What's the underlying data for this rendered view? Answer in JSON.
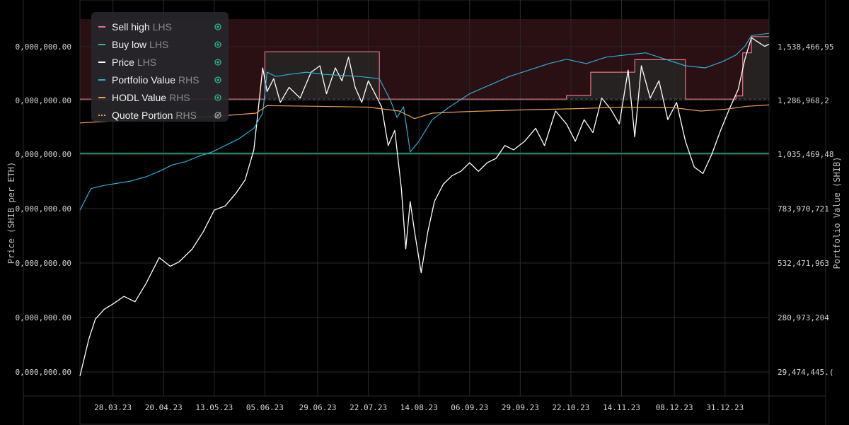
{
  "chart_data": {
    "type": "line",
    "left_axis_label": "Price (SHIB per ETH)",
    "right_axis_label": "Portfolio Value (SHIB)",
    "left_ticks": [
      "0,000,000.00",
      "0,000,000.00",
      "0,000,000.00",
      "0,000,000.00",
      "0,000,000.00",
      "0,000,000.00",
      "0,000,000.00"
    ],
    "right_ticks": [
      "1,538,466,95",
      "1,286,968,2",
      "1,035,469,48",
      "783,970,721",
      "532,471,963",
      "280,973,204",
      "29,474,445.("
    ],
    "right_tick_values": [
      1538466950,
      1286968200,
      1035469480,
      783970721,
      532471963,
      280973204,
      29474445
    ],
    "x_tick_labels": [
      "28.03.23",
      "20.04.23",
      "13.05.23",
      "05.06.23",
      "29.06.23",
      "22.07.23",
      "14.08.23",
      "06.09.23",
      "29.09.23",
      "22.10.23",
      "14.11.23",
      "08.12.23",
      "31.12.23"
    ],
    "x_tick_dates": [
      "2023-03-28",
      "2023-04-20",
      "2023-05-13",
      "2023-06-05",
      "2023-06-29",
      "2023-07-22",
      "2023-08-14",
      "2023-09-06",
      "2023-09-29",
      "2023-10-22",
      "2023-11-14",
      "2023-12-08",
      "2023-12-31"
    ],
    "x_range": [
      "2023-03-13",
      "2024-01-20"
    ],
    "grid": true,
    "legend_position": "top-left",
    "series": [
      {
        "name": "Sell high",
        "axis": "LHS",
        "color": "#e8737f",
        "visible": true,
        "style": "step",
        "points": [
          [
            "2023-03-13",
            1295000000
          ],
          [
            "2023-06-05",
            1295000000
          ],
          [
            "2023-06-05",
            1515000000
          ],
          [
            "2023-07-27",
            1515000000
          ],
          [
            "2023-07-27",
            1295000000
          ],
          [
            "2023-10-20",
            1295000000
          ],
          [
            "2023-10-20",
            1312000000
          ],
          [
            "2023-10-31",
            1312000000
          ],
          [
            "2023-10-31",
            1420000000
          ],
          [
            "2023-11-20",
            1420000000
          ],
          [
            "2023-11-20",
            1478000000
          ],
          [
            "2023-12-13",
            1478000000
          ],
          [
            "2023-12-13",
            1295000000
          ],
          [
            "2023-12-30",
            1295000000
          ],
          [
            "2024-01-05",
            1295000000
          ],
          [
            "2024-01-05",
            1310000000
          ],
          [
            "2024-01-08",
            1310000000
          ],
          [
            "2024-01-08",
            1510000000
          ],
          [
            "2024-01-12",
            1510000000
          ],
          [
            "2024-01-12",
            1585000000
          ],
          [
            "2024-01-20",
            1585000000
          ]
        ]
      },
      {
        "name": "Buy low",
        "axis": "LHS",
        "color": "#2fb884",
        "visible": true,
        "style": "line",
        "points": [
          [
            "2023-03-13",
            1042000000
          ],
          [
            "2024-01-20",
            1042000000
          ]
        ]
      },
      {
        "name": "Price",
        "axis": "LHS",
        "color": "#ffffff",
        "visible": true,
        "style": "line",
        "points": [
          [
            "2023-03-13",
            10000000
          ],
          [
            "2023-03-17",
            180000000
          ],
          [
            "2023-03-20",
            275000000
          ],
          [
            "2023-03-24",
            320000000
          ],
          [
            "2023-03-28",
            345000000
          ],
          [
            "2023-04-02",
            380000000
          ],
          [
            "2023-04-07",
            355000000
          ],
          [
            "2023-04-12",
            440000000
          ],
          [
            "2023-04-18",
            560000000
          ],
          [
            "2023-04-23",
            520000000
          ],
          [
            "2023-04-27",
            540000000
          ],
          [
            "2023-05-03",
            600000000
          ],
          [
            "2023-05-08",
            680000000
          ],
          [
            "2023-05-13",
            780000000
          ],
          [
            "2023-05-18",
            800000000
          ],
          [
            "2023-05-23",
            860000000
          ],
          [
            "2023-05-27",
            920000000
          ],
          [
            "2023-05-31",
            1060000000
          ],
          [
            "2023-06-02",
            1250000000
          ],
          [
            "2023-06-04",
            1440000000
          ],
          [
            "2023-06-06",
            1330000000
          ],
          [
            "2023-06-09",
            1390000000
          ],
          [
            "2023-06-12",
            1280000000
          ],
          [
            "2023-06-16",
            1350000000
          ],
          [
            "2023-06-21",
            1300000000
          ],
          [
            "2023-06-26",
            1420000000
          ],
          [
            "2023-06-30",
            1450000000
          ],
          [
            "2023-07-03",
            1320000000
          ],
          [
            "2023-07-07",
            1440000000
          ],
          [
            "2023-07-10",
            1380000000
          ],
          [
            "2023-07-13",
            1490000000
          ],
          [
            "2023-07-16",
            1350000000
          ],
          [
            "2023-07-19",
            1280000000
          ],
          [
            "2023-07-22",
            1380000000
          ],
          [
            "2023-07-25",
            1320000000
          ],
          [
            "2023-07-28",
            1260000000
          ],
          [
            "2023-07-31",
            1080000000
          ],
          [
            "2023-08-03",
            1150000000
          ],
          [
            "2023-08-06",
            880000000
          ],
          [
            "2023-08-08",
            600000000
          ],
          [
            "2023-08-10",
            820000000
          ],
          [
            "2023-08-12",
            680000000
          ],
          [
            "2023-08-15",
            490000000
          ],
          [
            "2023-08-18",
            680000000
          ],
          [
            "2023-08-21",
            820000000
          ],
          [
            "2023-08-25",
            900000000
          ],
          [
            "2023-08-29",
            940000000
          ],
          [
            "2023-09-02",
            960000000
          ],
          [
            "2023-09-06",
            1000000000
          ],
          [
            "2023-09-10",
            960000000
          ],
          [
            "2023-09-14",
            1000000000
          ],
          [
            "2023-09-18",
            1020000000
          ],
          [
            "2023-09-22",
            1080000000
          ],
          [
            "2023-09-26",
            1060000000
          ],
          [
            "2023-10-01",
            1100000000
          ],
          [
            "2023-10-06",
            1160000000
          ],
          [
            "2023-10-10",
            1080000000
          ],
          [
            "2023-10-15",
            1240000000
          ],
          [
            "2023-10-20",
            1180000000
          ],
          [
            "2023-10-24",
            1100000000
          ],
          [
            "2023-10-28",
            1200000000
          ],
          [
            "2023-11-01",
            1140000000
          ],
          [
            "2023-11-05",
            1300000000
          ],
          [
            "2023-11-09",
            1250000000
          ],
          [
            "2023-11-13",
            1180000000
          ],
          [
            "2023-11-17",
            1430000000
          ],
          [
            "2023-11-20",
            1120000000
          ],
          [
            "2023-11-23",
            1450000000
          ],
          [
            "2023-11-27",
            1300000000
          ],
          [
            "2023-12-01",
            1380000000
          ],
          [
            "2023-12-05",
            1200000000
          ],
          [
            "2023-12-09",
            1280000000
          ],
          [
            "2023-12-13",
            1100000000
          ],
          [
            "2023-12-17",
            980000000
          ],
          [
            "2023-12-21",
            950000000
          ],
          [
            "2023-12-25",
            1040000000
          ],
          [
            "2023-12-29",
            1150000000
          ],
          [
            "2024-01-02",
            1250000000
          ],
          [
            "2024-01-06",
            1340000000
          ],
          [
            "2024-01-09",
            1480000000
          ],
          [
            "2024-01-12",
            1580000000
          ],
          [
            "2024-01-15",
            1560000000
          ],
          [
            "2024-01-18",
            1540000000
          ],
          [
            "2024-01-20",
            1550000000
          ]
        ]
      },
      {
        "name": "Portfolio Value",
        "axis": "RHS",
        "color": "#27b0d6",
        "visible": true,
        "style": "line",
        "points": [
          [
            "2023-03-13",
            780000000
          ],
          [
            "2023-03-18",
            880000000
          ],
          [
            "2023-03-24",
            895000000
          ],
          [
            "2023-03-30",
            905000000
          ],
          [
            "2023-04-05",
            915000000
          ],
          [
            "2023-04-12",
            935000000
          ],
          [
            "2023-04-18",
            960000000
          ],
          [
            "2023-04-24",
            990000000
          ],
          [
            "2023-04-30",
            1005000000
          ],
          [
            "2023-05-06",
            1030000000
          ],
          [
            "2023-05-12",
            1050000000
          ],
          [
            "2023-05-18",
            1080000000
          ],
          [
            "2023-05-24",
            1110000000
          ],
          [
            "2023-05-31",
            1160000000
          ],
          [
            "2023-06-04",
            1230000000
          ],
          [
            "2023-06-06",
            1420000000
          ],
          [
            "2023-06-10",
            1400000000
          ],
          [
            "2023-06-16",
            1410000000
          ],
          [
            "2023-06-24",
            1420000000
          ],
          [
            "2023-07-02",
            1410000000
          ],
          [
            "2023-07-10",
            1405000000
          ],
          [
            "2023-07-18",
            1400000000
          ],
          [
            "2023-07-27",
            1390000000
          ],
          [
            "2023-08-01",
            1290000000
          ],
          [
            "2023-08-04",
            1210000000
          ],
          [
            "2023-08-07",
            1260000000
          ],
          [
            "2023-08-10",
            1050000000
          ],
          [
            "2023-08-14",
            1100000000
          ],
          [
            "2023-08-20",
            1200000000
          ],
          [
            "2023-08-28",
            1260000000
          ],
          [
            "2023-09-06",
            1320000000
          ],
          [
            "2023-09-15",
            1360000000
          ],
          [
            "2023-09-24",
            1400000000
          ],
          [
            "2023-10-03",
            1430000000
          ],
          [
            "2023-10-12",
            1460000000
          ],
          [
            "2023-10-20",
            1480000000
          ],
          [
            "2023-10-29",
            1460000000
          ],
          [
            "2023-11-07",
            1490000000
          ],
          [
            "2023-11-16",
            1500000000
          ],
          [
            "2023-11-25",
            1510000000
          ],
          [
            "2023-12-04",
            1480000000
          ],
          [
            "2023-12-13",
            1450000000
          ],
          [
            "2023-12-22",
            1440000000
          ],
          [
            "2023-12-30",
            1470000000
          ],
          [
            "2024-01-05",
            1500000000
          ],
          [
            "2024-01-09",
            1540000000
          ],
          [
            "2024-01-12",
            1590000000
          ],
          [
            "2024-01-20",
            1600000000
          ]
        ]
      },
      {
        "name": "HODL Value",
        "axis": "RHS",
        "color": "#f0a04b",
        "visible": true,
        "style": "line",
        "points": [
          [
            "2023-03-13",
            1185000000
          ],
          [
            "2023-03-30",
            1195000000
          ],
          [
            "2023-04-20",
            1205000000
          ],
          [
            "2023-05-13",
            1215000000
          ],
          [
            "2023-06-01",
            1230000000
          ],
          [
            "2023-06-06",
            1265000000
          ],
          [
            "2023-06-29",
            1262000000
          ],
          [
            "2023-07-22",
            1258000000
          ],
          [
            "2023-08-05",
            1240000000
          ],
          [
            "2023-08-12",
            1205000000
          ],
          [
            "2023-08-20",
            1230000000
          ],
          [
            "2023-09-06",
            1238000000
          ],
          [
            "2023-09-29",
            1245000000
          ],
          [
            "2023-10-22",
            1250000000
          ],
          [
            "2023-11-14",
            1258000000
          ],
          [
            "2023-12-08",
            1255000000
          ],
          [
            "2023-12-20",
            1240000000
          ],
          [
            "2023-12-31",
            1248000000
          ],
          [
            "2024-01-10",
            1262000000
          ],
          [
            "2024-01-20",
            1268000000
          ]
        ]
      },
      {
        "name": "Quote Portion",
        "axis": "RHS",
        "color": "#f0a04b",
        "visible": false,
        "style": "dotted",
        "points": []
      }
    ]
  },
  "legend": {
    "items": [
      {
        "name": "Sell high",
        "side": "LHS",
        "color": "#e8737f",
        "dashed": false,
        "visible": true
      },
      {
        "name": "Buy low",
        "side": "LHS",
        "color": "#2fb884",
        "dashed": false,
        "visible": true
      },
      {
        "name": "Price",
        "side": "LHS",
        "color": "#ffffff",
        "dashed": false,
        "visible": true
      },
      {
        "name": "Portfolio Value",
        "side": "RHS",
        "color": "#27b0d6",
        "dashed": false,
        "visible": true
      },
      {
        "name": "HODL Value",
        "side": "RHS",
        "color": "#f0a04b",
        "dashed": false,
        "visible": true
      },
      {
        "name": "Quote Portion",
        "side": "RHS",
        "color": "#f0a04b",
        "dashed": true,
        "visible": false
      }
    ]
  },
  "colors": {
    "background": "#000000",
    "grid": "#2a2a2a",
    "sell_zone_fill": "#2a0f13",
    "buy_zone_fill": "#0b2a1e",
    "price_shade": "#262626",
    "eye_on": "#2fb884",
    "eye_off": "#9a9a9a"
  }
}
